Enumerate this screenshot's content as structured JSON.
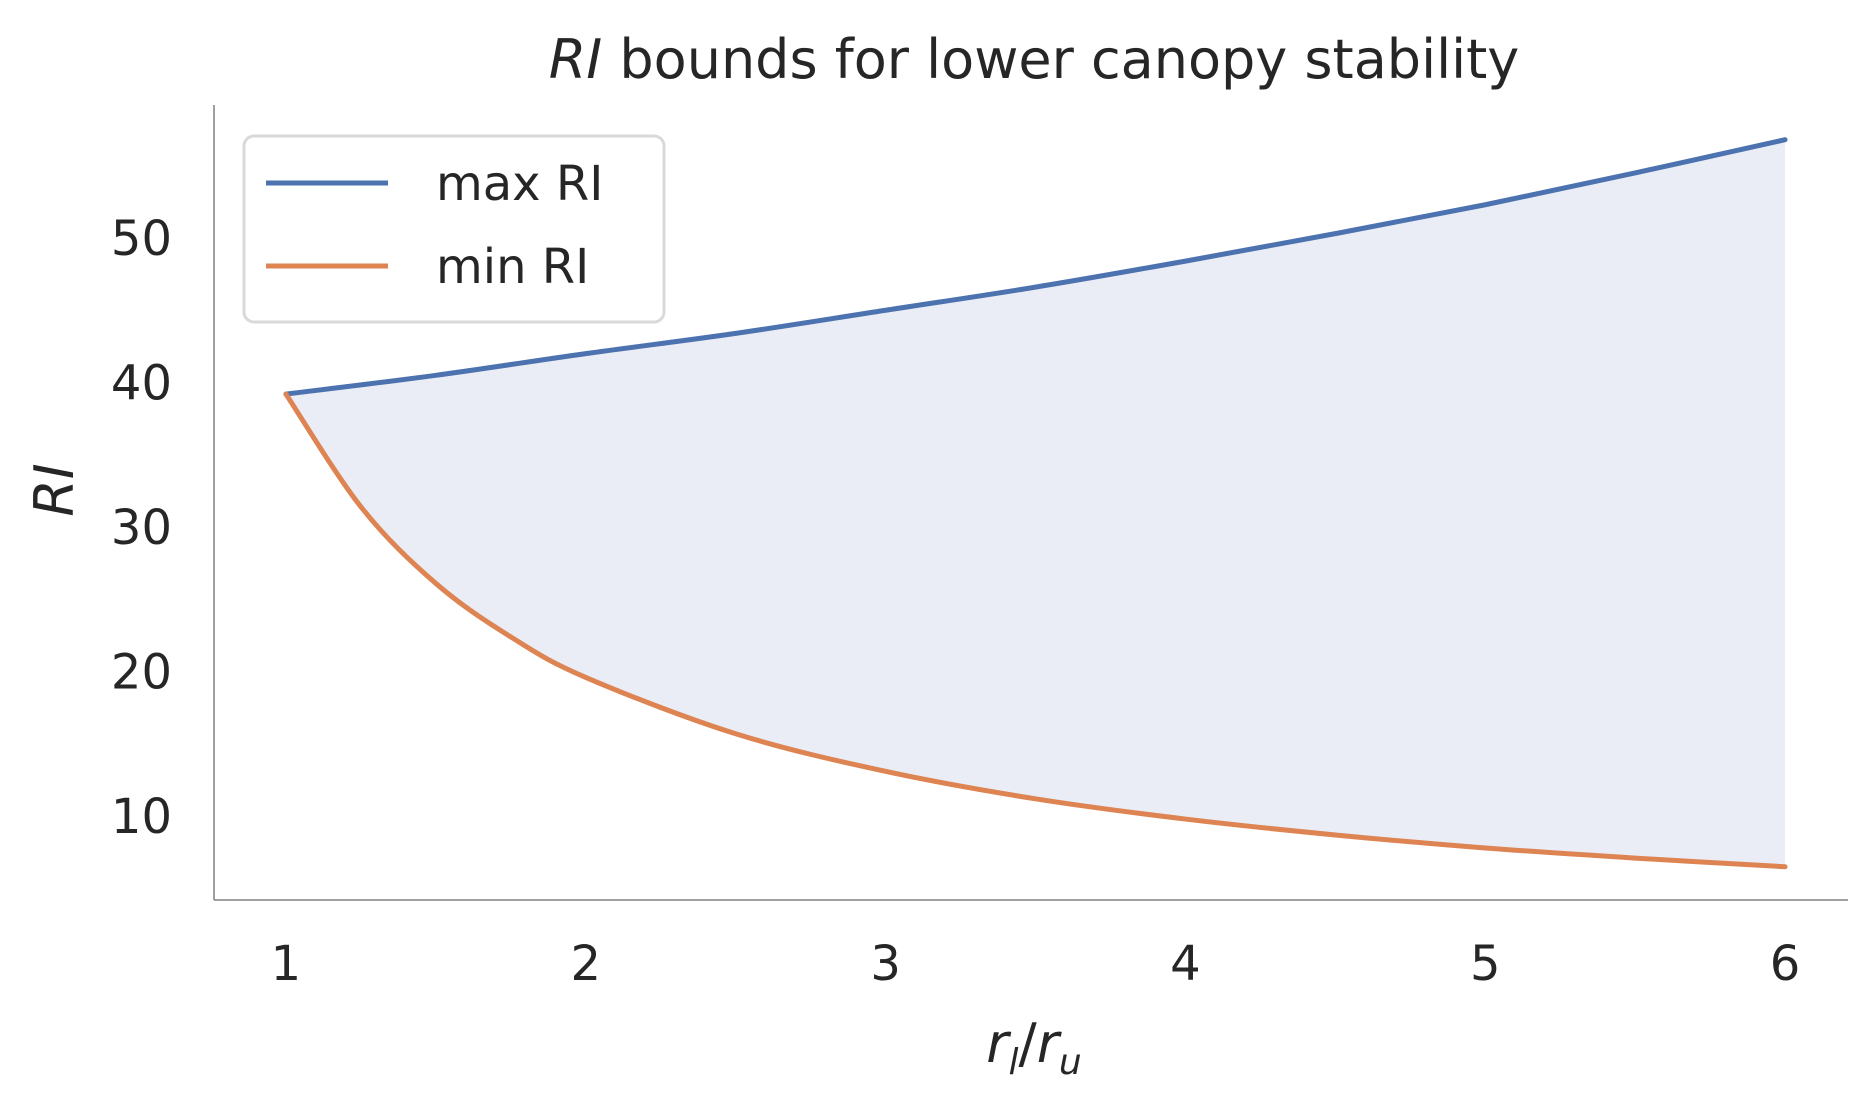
{
  "chart_data": {
    "type": "line",
    "title_italic": "RI",
    "title_rest": " bounds for lower canopy stability",
    "ylabel": "RI",
    "xlabel": {
      "r1": "r",
      "s1": "l",
      "slash": "/",
      "r2": "r",
      "s2": "u"
    },
    "xlim": [
      0.76,
      6.21
    ],
    "ylim": [
      4.2,
      59.2
    ],
    "xticks": [
      1,
      2,
      3,
      4,
      5,
      6
    ],
    "xtick_labels": [
      "1",
      "2",
      "3",
      "4",
      "5",
      "6"
    ],
    "yticks": [
      10,
      20,
      30,
      40,
      50
    ],
    "ytick_labels": [
      "10",
      "20",
      "30",
      "40",
      "50"
    ],
    "grid": false,
    "legend_position": "upper-left",
    "fill_between": {
      "color": "#eaedf5"
    },
    "series": [
      {
        "name": "max RI",
        "color": "#4c72b0",
        "x": [
          1.0,
          1.5,
          2.0,
          2.5,
          3.0,
          3.5,
          4.0,
          4.5,
          5.0,
          5.5,
          6.0
        ],
        "y": [
          39.2,
          40.5,
          42.0,
          43.4,
          45.0,
          46.6,
          48.4,
          50.3,
          52.3,
          54.5,
          56.8
        ]
      },
      {
        "name": "min RI",
        "color": "#dd8452",
        "x": [
          1.0,
          1.25,
          1.5,
          1.75,
          2.0,
          2.5,
          3.0,
          3.5,
          4.0,
          4.5,
          5.0,
          5.5,
          6.0
        ],
        "y": [
          39.2,
          31.4,
          26.1,
          22.4,
          19.6,
          15.7,
          13.1,
          11.2,
          9.8,
          8.7,
          7.8,
          7.1,
          6.5
        ]
      }
    ]
  }
}
